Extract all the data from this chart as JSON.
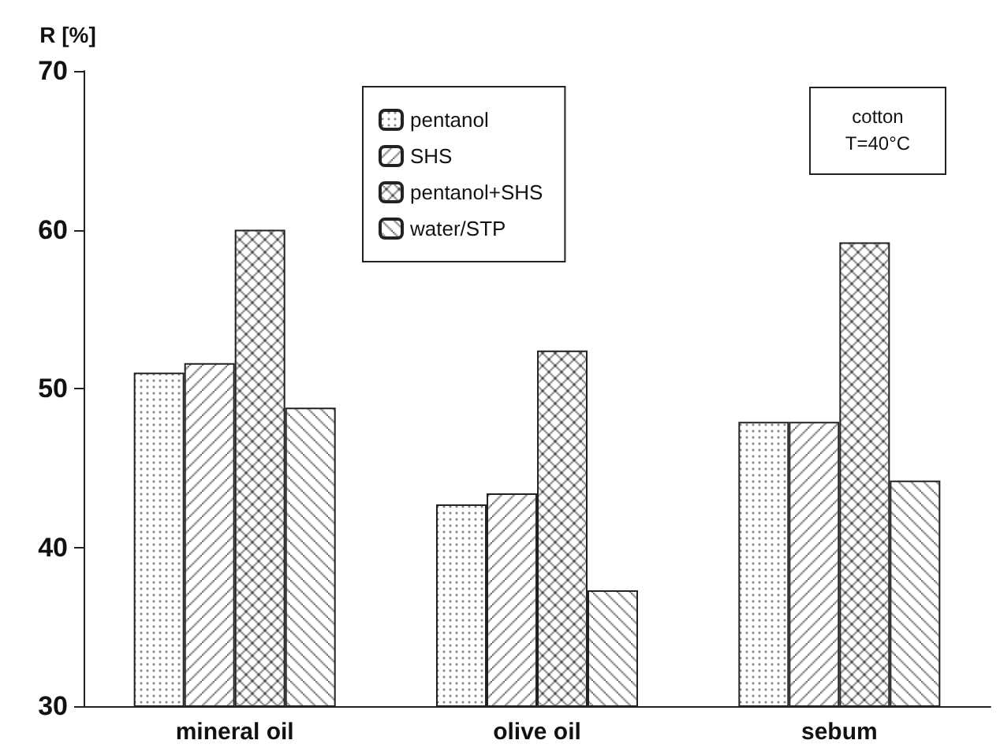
{
  "chart_data": {
    "type": "bar",
    "ylabel": "R [%]",
    "categories": [
      "mineral oil",
      "olive oil",
      "sebum"
    ],
    "series": [
      {
        "name": "pentanol",
        "color": "#222222",
        "values": [
          51.0,
          42.7,
          47.9
        ]
      },
      {
        "name": "SHS",
        "color": "#222222",
        "values": [
          51.6,
          43.4,
          47.9
        ]
      },
      {
        "name": "pentanol+SHS",
        "color": "#222222",
        "values": [
          60.0,
          52.4,
          59.2
        ]
      },
      {
        "name": "water/STP",
        "color": "#222222",
        "values": [
          48.8,
          37.3,
          44.2
        ]
      }
    ],
    "ylim": [
      30,
      70
    ],
    "yticks": [
      30,
      40,
      50,
      60,
      70
    ],
    "grid": false,
    "legend": "top",
    "annotations": [
      "cotton\nT=40°C"
    ]
  }
}
